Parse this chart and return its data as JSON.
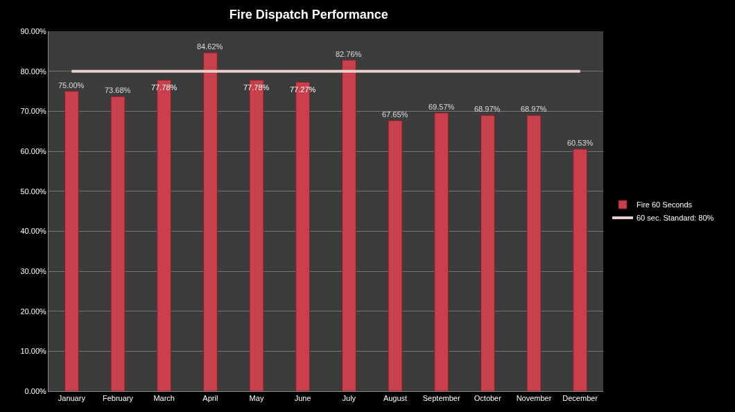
{
  "chart_data": {
    "type": "bar",
    "title": "Fire Dispatch Performance",
    "categories": [
      "January",
      "February",
      "March",
      "April",
      "May",
      "June",
      "July",
      "August",
      "September",
      "October",
      "November",
      "December"
    ],
    "series": [
      {
        "name": "Fire 60 Seconds",
        "color": "#c8404c",
        "values": [
          75.0,
          73.68,
          77.78,
          84.62,
          77.78,
          77.27,
          82.76,
          67.65,
          69.57,
          68.97,
          68.97,
          60.53
        ],
        "value_labels": [
          "75.00%",
          "73.68%",
          "77.78%",
          "84.62%",
          "77.78%",
          "77.27%",
          "82.76%",
          "67.65%",
          "69.57%",
          "68.97%",
          "68.97%",
          "60.53%"
        ]
      },
      {
        "name": "60 sec. Standard: 80%",
        "type": "line",
        "color": "#e8d0cc",
        "values": [
          80,
          80,
          80,
          80,
          80,
          80,
          80,
          80,
          80,
          80,
          80,
          80
        ]
      }
    ],
    "ylim": [
      0,
      90
    ],
    "yticks": [
      {
        "value": 0,
        "label": "0.00%"
      },
      {
        "value": 10,
        "label": "10.00%"
      },
      {
        "value": 20,
        "label": "20.00%"
      },
      {
        "value": 30,
        "label": "30.00%"
      },
      {
        "value": 40,
        "label": "40.00%"
      },
      {
        "value": 50,
        "label": "50.00%"
      },
      {
        "value": 60,
        "label": "60.00%"
      },
      {
        "value": 70,
        "label": "70.00%"
      },
      {
        "value": 80,
        "label": "80.00%"
      },
      {
        "value": 90,
        "label": "90.00%"
      }
    ],
    "grid": "y",
    "legend": "right",
    "marker": "none",
    "line_style": "solid"
  }
}
